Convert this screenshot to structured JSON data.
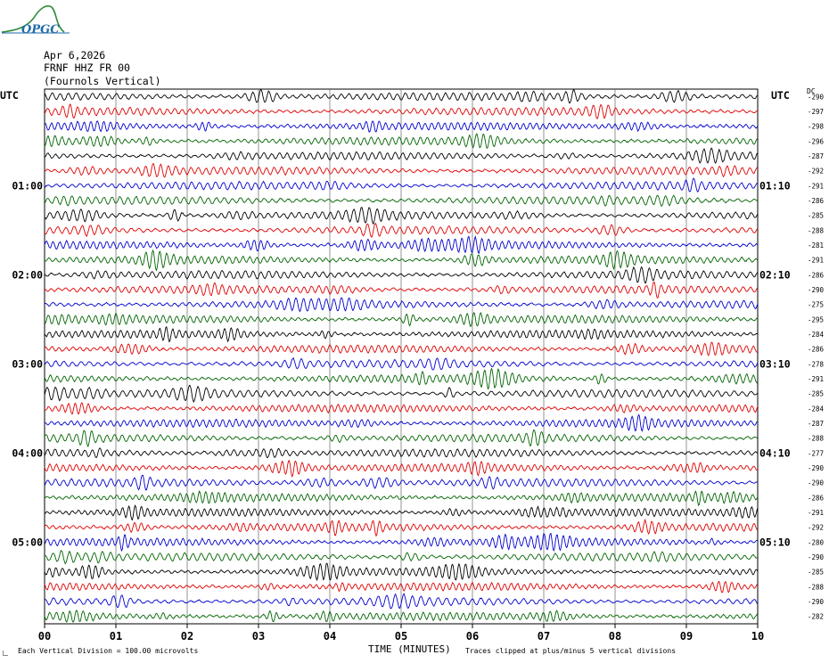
{
  "logo": {
    "text": "OPGC"
  },
  "header": {
    "date": "Apr 6,2026",
    "station": "FRNF HHZ FR 00",
    "location": "(Fournols Vertical)"
  },
  "axis": {
    "left_unit": "UTC",
    "right_unit": "UTC",
    "dc_label": "DC",
    "xlabel": "TIME (MINUTES)",
    "x_ticks": [
      "00",
      "01",
      "02",
      "03",
      "04",
      "05",
      "06",
      "07",
      "08",
      "09",
      "10"
    ],
    "left_hour_labels": [
      "01:00",
      "02:00",
      "03:00",
      "04:00",
      "05:00"
    ],
    "right_hour_labels": [
      "01:10",
      "02:10",
      "03:10",
      "04:10",
      "05:10"
    ]
  },
  "footer": {
    "scale_note": "Each Vertical Division =  100.00 microvolts",
    "clip_note": "Traces clipped at plus/minus 5 vertical divisions"
  },
  "chart_data": {
    "type": "line",
    "description_free": true,
    "trace_colors": [
      "#000000",
      "#e00000",
      "#0000d0",
      "#006400"
    ],
    "x_range_minutes": [
      0,
      10
    ],
    "dc_offsets": [
      -290,
      -297,
      -298,
      -296,
      -287,
      -292,
      -291,
      -286,
      -285,
      -288,
      -281,
      -291,
      -286,
      -290,
      -275,
      -295,
      -284,
      -286,
      -278,
      -291,
      -285,
      -284,
      -287,
      -288,
      -277,
      -290,
      -290,
      -286,
      -291,
      -292,
      -280,
      -290,
      -285,
      -288,
      -290,
      -282
    ]
  }
}
